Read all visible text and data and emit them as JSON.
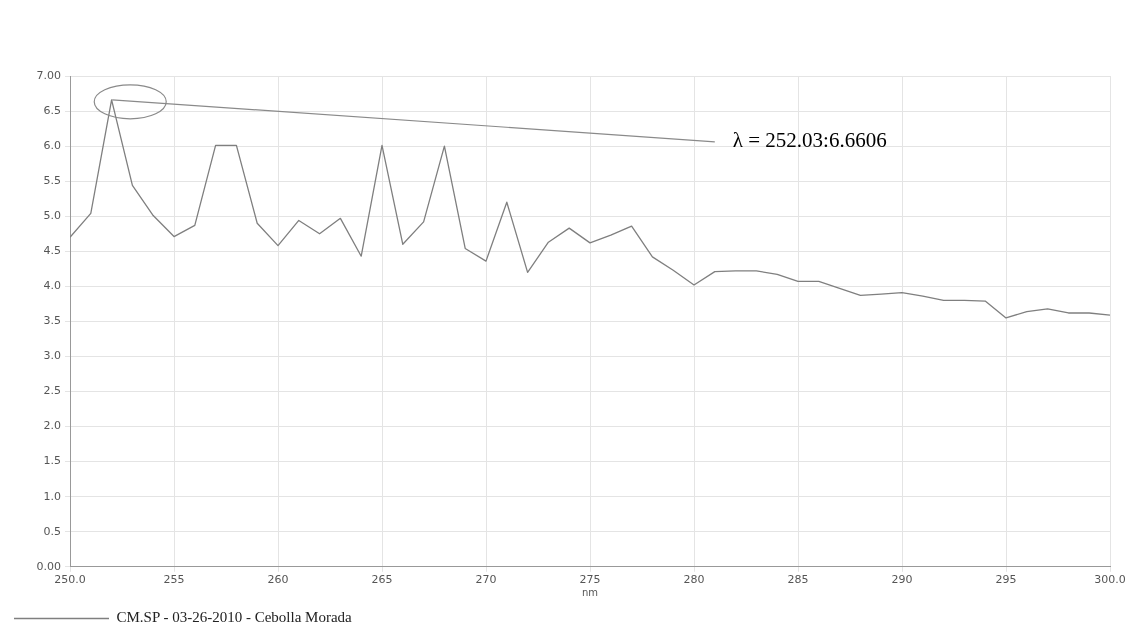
{
  "chart_data": {
    "type": "line",
    "x": [
      250,
      251,
      252,
      253,
      254,
      255,
      256,
      257,
      258,
      259,
      260,
      261,
      262,
      263,
      264,
      265,
      266,
      267,
      268,
      269,
      270,
      271,
      272,
      273,
      274,
      275,
      276,
      277,
      278,
      279,
      280,
      281,
      282,
      283,
      284,
      285,
      286,
      287,
      288,
      289,
      290,
      291,
      292,
      293,
      294,
      295,
      296,
      297,
      298,
      299,
      300
    ],
    "series": [
      {
        "name": "CM.SP - 03-26-2010 - Cebolla Morada",
        "color": "#7f7f7f",
        "values": [
          4.7,
          5.04,
          6.66,
          5.44,
          5.01,
          4.71,
          4.87,
          6.01,
          6.01,
          4.9,
          4.58,
          4.94,
          4.75,
          4.97,
          4.43,
          6.01,
          4.6,
          4.92,
          6.0,
          4.54,
          4.36,
          5.2,
          4.2,
          4.63,
          4.83,
          4.62,
          4.73,
          4.86,
          4.42,
          4.23,
          4.02,
          4.21,
          4.22,
          4.22,
          4.17,
          4.07,
          4.07,
          3.97,
          3.87,
          3.89,
          3.91,
          3.86,
          3.8,
          3.8,
          3.79,
          3.55,
          3.64,
          3.68,
          3.62,
          3.62,
          3.59
        ]
      }
    ],
    "xlabel": "nm",
    "xlim": [
      250,
      300
    ],
    "xticks": [
      {
        "value": 250,
        "label": "250.0"
      },
      255,
      260,
      265,
      270,
      275,
      280,
      285,
      290,
      295,
      {
        "value": 300,
        "label": "300.0"
      }
    ],
    "ylim": [
      0,
      7
    ],
    "yticks": [
      {
        "value": 0,
        "label": "0.00"
      },
      {
        "value": 0.5,
        "label": "0.5"
      },
      {
        "value": 1,
        "label": "1.0"
      },
      {
        "value": 1.5,
        "label": "1.5"
      },
      {
        "value": 2,
        "label": "2.0"
      },
      {
        "value": 2.5,
        "label": "2.5"
      },
      {
        "value": 3,
        "label": "3.0"
      },
      {
        "value": 3.5,
        "label": "3.5"
      },
      {
        "value": 4,
        "label": "4.0"
      },
      {
        "value": 4.5,
        "label": "4.5"
      },
      {
        "value": 5,
        "label": "5.0"
      },
      {
        "value": 5.5,
        "label": "5.5"
      },
      {
        "value": 6,
        "label": "6.0"
      },
      {
        "value": 6.5,
        "label": "6.5"
      },
      {
        "value": 7,
        "label": "7.00"
      }
    ],
    "grid": true,
    "legend": "bottom left",
    "marker": "none",
    "line_style": "solid",
    "annotations": [
      {
        "text": "λ = 252.03:6.6606",
        "x": 252.03,
        "y": 6.6606
      }
    ]
  }
}
